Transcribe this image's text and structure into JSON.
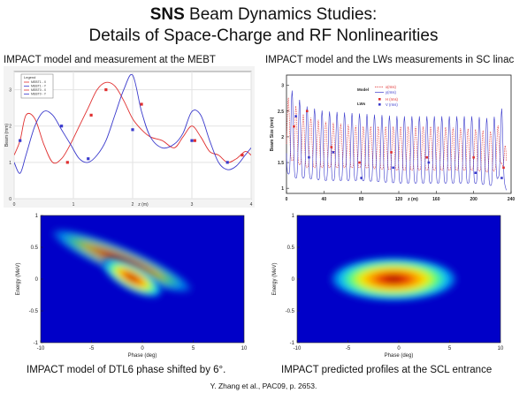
{
  "slide": {
    "title_bold": "SNS",
    "title_rest": " Beam Dynamics Studies:",
    "subtitle": "Details of Space-Charge and RF Nonlinearities",
    "citation": "Y. Zhang et al., PAC09, p. 2653."
  },
  "chart_data": [
    {
      "type": "line",
      "caption": "IMPACT model and measurement at the MEBT",
      "xlabel": "z (m)",
      "ylabel": "Beam (mm)",
      "xlim": [
        0,
        4
      ],
      "ylim": [
        0,
        3.5
      ],
      "x_ticks": [
        "0",
        "1",
        "2",
        "3",
        "4"
      ],
      "y_ticks": [
        "0",
        "1",
        "2",
        "3"
      ],
      "grid": true,
      "legend": {
        "title": "Legend",
        "placement": "top-left",
        "entries": [
          "MEBT1 - X",
          "MEBT1 - Y",
          "MEBT0 - X",
          "MEBT0 - Y"
        ]
      },
      "series": [
        {
          "name": "x",
          "style": "line",
          "color": "#e03030",
          "x": [
            0,
            0.1,
            0.2,
            0.35,
            0.5,
            0.65,
            0.8,
            0.95,
            1.1,
            1.25,
            1.4,
            1.55,
            1.7,
            1.85,
            2.0,
            2.15,
            2.3,
            2.5,
            2.7,
            2.85,
            3.0,
            3.15,
            3.3,
            3.45,
            3.6,
            3.75,
            3.9,
            4.0
          ],
          "y": [
            1.2,
            1.6,
            2.3,
            2.2,
            1.5,
            1.0,
            1.1,
            1.5,
            2.0,
            2.5,
            3.0,
            3.2,
            3.1,
            2.7,
            2.2,
            1.9,
            1.7,
            1.6,
            1.4,
            1.7,
            2.0,
            1.7,
            1.3,
            1.2,
            1.0,
            1.1,
            1.3,
            1.2
          ]
        },
        {
          "name": "y",
          "style": "line",
          "color": "#3a3acc",
          "x": [
            0,
            0.1,
            0.2,
            0.35,
            0.5,
            0.65,
            0.8,
            0.95,
            1.1,
            1.25,
            1.4,
            1.55,
            1.7,
            1.85,
            2.0,
            2.15,
            2.3,
            2.5,
            2.7,
            2.85,
            3.0,
            3.15,
            3.3,
            3.45,
            3.6,
            3.75,
            3.9,
            4.0
          ],
          "y": [
            1.0,
            0.7,
            1.2,
            2.0,
            2.4,
            2.3,
            1.9,
            1.5,
            1.1,
            1.0,
            1.2,
            1.6,
            2.3,
            3.0,
            3.4,
            2.4,
            1.7,
            1.4,
            1.5,
            1.8,
            2.4,
            2.3,
            1.6,
            1.0,
            0.8,
            0.9,
            1.2,
            1.4
          ]
        },
        {
          "name": "x measured",
          "style": "marker",
          "color": "#e03030",
          "x": [
            0.9,
            1.3,
            1.55,
            2.15,
            3.05,
            3.85
          ],
          "y": [
            1.0,
            2.3,
            3.0,
            2.6,
            1.6,
            1.2
          ]
        },
        {
          "name": "y measured",
          "style": "marker",
          "color": "#3a3acc",
          "x": [
            0.1,
            0.8,
            1.25,
            2.0,
            3.0,
            3.6
          ],
          "y": [
            1.6,
            2.0,
            1.1,
            1.9,
            1.6,
            1.0
          ]
        }
      ]
    },
    {
      "type": "line",
      "caption": "IMPACT model and the LWs measurements in SC linac",
      "xlabel": "z (m)",
      "ylabel": "Beam Size (mm)",
      "xlim": [
        0,
        240
      ],
      "ylim": [
        0.9,
        3.2
      ],
      "x_ticks": [
        "0",
        "40",
        "80",
        "120",
        "160",
        "200",
        "240"
      ],
      "y_ticks": [
        "1",
        "1.5",
        "2",
        "2.5",
        "3"
      ],
      "grid": false,
      "legend": {
        "placement": "top-center",
        "model_label": "Model",
        "lws_label": "LWs",
        "entries": [
          "x(rms)",
          "y(rms)",
          "H (rms)",
          "V (rms)"
        ]
      },
      "series": [
        {
          "name": "x(rms)",
          "style": "oscillating-line",
          "color": "#e03030",
          "period": 8,
          "x_envelope": [
            0,
            10,
            20,
            40,
            80,
            120,
            160,
            200,
            220,
            230,
            235
          ],
          "y_high": [
            2.8,
            2.6,
            2.4,
            2.3,
            2.2,
            2.2,
            2.2,
            2.15,
            2.1,
            2.3,
            1.7
          ],
          "y_low": [
            1.6,
            1.5,
            1.4,
            1.4,
            1.4,
            1.35,
            1.35,
            1.35,
            1.3,
            1.5,
            1.1
          ]
        },
        {
          "name": "y(rms)",
          "style": "oscillating-line",
          "color": "#3a3acc",
          "period": 8,
          "x_envelope": [
            0,
            10,
            20,
            40,
            80,
            120,
            160,
            200,
            220,
            230,
            235
          ],
          "y_high": [
            3.05,
            2.8,
            2.6,
            2.5,
            2.45,
            2.4,
            2.4,
            2.4,
            2.35,
            2.55,
            1.8
          ],
          "y_low": [
            1.3,
            1.2,
            1.2,
            1.15,
            1.15,
            1.1,
            1.1,
            1.1,
            1.05,
            1.3,
            0.95
          ]
        },
        {
          "name": "H (rms)",
          "style": "marker",
          "color": "#e03030",
          "x": [
            8,
            22,
            48,
            78,
            112,
            150,
            200,
            232
          ],
          "y": [
            2.2,
            2.5,
            1.8,
            1.5,
            1.7,
            1.6,
            1.6,
            1.4
          ]
        },
        {
          "name": "V (rms)",
          "style": "marker",
          "color": "#3a3acc",
          "x": [
            10,
            24,
            50,
            80,
            114,
            152,
            202,
            230
          ],
          "y": [
            2.4,
            1.6,
            1.7,
            1.2,
            1.4,
            1.5,
            1.3,
            1.2
          ]
        }
      ]
    },
    {
      "type": "heatmap",
      "caption": "IMPACT model of DTL6 phase shifted by 6°.",
      "xlabel": "Phase (deg)",
      "ylabel": "Energy (MeV)",
      "xlim": [
        -10,
        10
      ],
      "ylim": [
        -1,
        1
      ],
      "x_ticks": [
        "-10",
        "-5",
        "0",
        "5",
        "10"
      ],
      "y_ticks": [
        "-1",
        "-0.5",
        "0",
        "0.5",
        "1"
      ],
      "distribution": {
        "shape": "tilted tail",
        "core_center": [
          -1,
          0.02
        ],
        "tail_from": [
          -9,
          0.75
        ],
        "tail_to": [
          5,
          -0.18
        ]
      }
    },
    {
      "type": "heatmap",
      "caption": "IMPACT predicted profiles at the SCL entrance",
      "xlabel": "Phase (deg)",
      "ylabel": "Energy (MeV)",
      "xlim": [
        -10,
        10
      ],
      "ylim": [
        -1,
        1
      ],
      "x_ticks": [
        "-10",
        "-5",
        "0",
        "5",
        "10"
      ],
      "y_ticks": [
        "-1",
        "-0.5",
        "0",
        "0.5",
        "1"
      ],
      "distribution": {
        "shape": "ellipse",
        "core_center": [
          -0.5,
          0.0
        ],
        "phase_halfwidth": 6,
        "energy_halfwidth": 0.3
      }
    }
  ]
}
